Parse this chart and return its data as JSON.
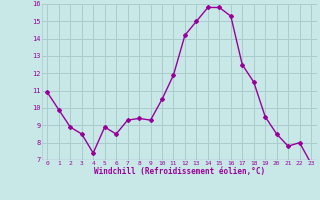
{
  "x": [
    0,
    1,
    2,
    3,
    4,
    5,
    6,
    7,
    8,
    9,
    10,
    11,
    12,
    13,
    14,
    15,
    16,
    17,
    18,
    19,
    20,
    21,
    22,
    23
  ],
  "y": [
    10.9,
    9.9,
    8.9,
    8.5,
    7.4,
    8.9,
    8.5,
    9.3,
    9.4,
    9.3,
    10.5,
    11.9,
    14.2,
    15.0,
    15.8,
    15.8,
    15.3,
    12.5,
    11.5,
    9.5,
    8.5,
    7.8,
    8.0,
    6.8
  ],
  "line_color": "#990099",
  "marker": "D",
  "marker_size": 2.0,
  "line_width": 1.0,
  "bg_color": "#c8e8e8",
  "grid_color": "#aacccc",
  "xlabel": "Windchill (Refroidissement éolien,°C)",
  "xlabel_color": "#990099",
  "tick_color": "#990099",
  "ylim": [
    7,
    16
  ],
  "yticks": [
    7,
    8,
    9,
    10,
    11,
    12,
    13,
    14,
    15,
    16
  ],
  "xticks": [
    0,
    1,
    2,
    3,
    4,
    5,
    6,
    7,
    8,
    9,
    10,
    11,
    12,
    13,
    14,
    15,
    16,
    17,
    18,
    19,
    20,
    21,
    22,
    23
  ]
}
